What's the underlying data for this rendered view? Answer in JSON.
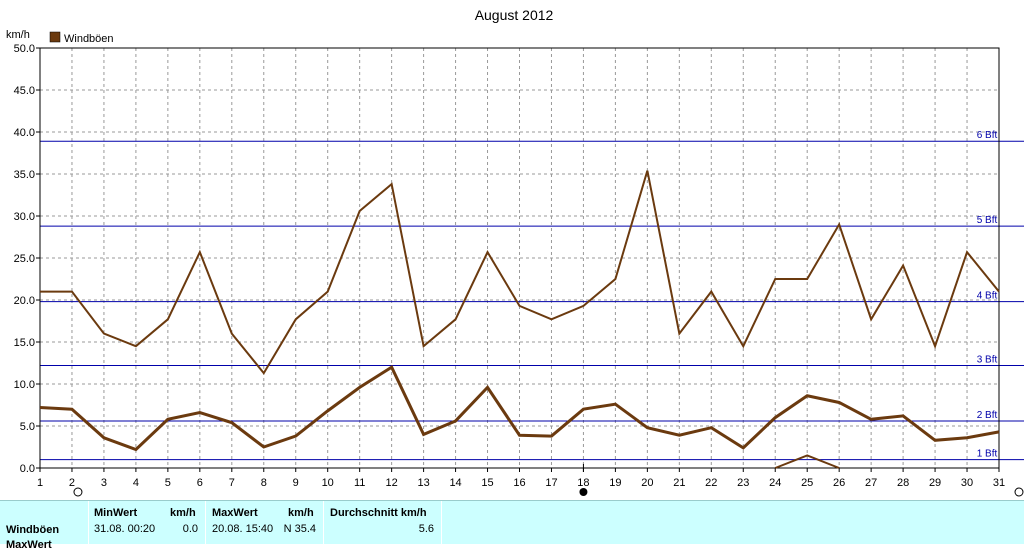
{
  "chart_data": {
    "type": "line",
    "title": "August 2012",
    "ylabel": "km/h",
    "legend": {
      "label": "Windböen",
      "color": "#6b3a0f",
      "placement": "top-left"
    },
    "x": [
      1,
      2,
      3,
      4,
      5,
      6,
      7,
      8,
      9,
      10,
      11,
      12,
      13,
      14,
      15,
      16,
      17,
      18,
      19,
      20,
      21,
      22,
      23,
      24,
      25,
      26,
      27,
      28,
      29,
      30,
      31
    ],
    "xlim": [
      1,
      31
    ],
    "ylim": [
      0,
      50
    ],
    "yticks": [
      "0.0",
      "5.0",
      "10.0",
      "15.0",
      "20.0",
      "25.0",
      "30.0",
      "35.0",
      "40.0",
      "45.0",
      "50.0"
    ],
    "grid": true,
    "series": [
      {
        "name": "Windböen",
        "role": "max",
        "color": "#6b3a0f",
        "values": [
          21.0,
          21.0,
          16.0,
          14.5,
          17.7,
          25.7,
          16.0,
          11.3,
          17.7,
          21.0,
          30.6,
          33.8,
          14.5,
          17.7,
          25.7,
          19.3,
          17.7,
          19.3,
          22.5,
          35.4,
          16.0,
          21.0,
          14.5,
          22.5,
          22.5,
          29.0,
          17.7,
          24.1,
          14.5,
          25.7,
          21.0
        ]
      },
      {
        "role": "mean",
        "color": "#6b3a0f",
        "values": [
          7.2,
          7.0,
          3.6,
          2.2,
          5.8,
          6.6,
          5.4,
          2.5,
          3.8,
          6.8,
          9.6,
          12.0,
          4.0,
          5.6,
          9.6,
          3.9,
          3.8,
          7.0,
          7.6,
          4.8,
          3.9,
          4.8,
          2.4,
          6.0,
          8.6,
          7.8,
          5.8,
          6.2,
          3.3,
          3.6,
          4.3
        ]
      },
      {
        "role": "min",
        "color": "#6b3a0f",
        "x": [
          24,
          25,
          26
        ],
        "values": [
          0.0,
          1.5,
          0.0
        ]
      }
    ],
    "beaufort_lines": [
      {
        "label": "1 Bft",
        "value": 1.0
      },
      {
        "label": "2 Bft",
        "value": 5.6
      },
      {
        "label": "3 Bft",
        "value": 12.2
      },
      {
        "label": "4 Bft",
        "value": 19.8
      },
      {
        "label": "5 Bft",
        "value": 28.8
      },
      {
        "label": "6 Bft",
        "value": 38.9
      }
    ],
    "markers": [
      {
        "type": "new-moon",
        "x": 2
      },
      {
        "type": "full-moon",
        "x": 18
      },
      {
        "type": "new-moon",
        "x": 31
      }
    ]
  },
  "stats": {
    "min_header": "MinWert",
    "unit_header_1": "km/h",
    "max_header": "MaxWert",
    "unit_header_2": "km/h",
    "avg_header": "Durchschnitt km/h",
    "row_label": "Windböen",
    "row_label_2": "MaxWert",
    "min_time": "31.08.  00:20",
    "min_value": "0.0",
    "max_time": "20.08.  15:40",
    "max_value": "N 35.4",
    "avg_value": "5.6"
  }
}
